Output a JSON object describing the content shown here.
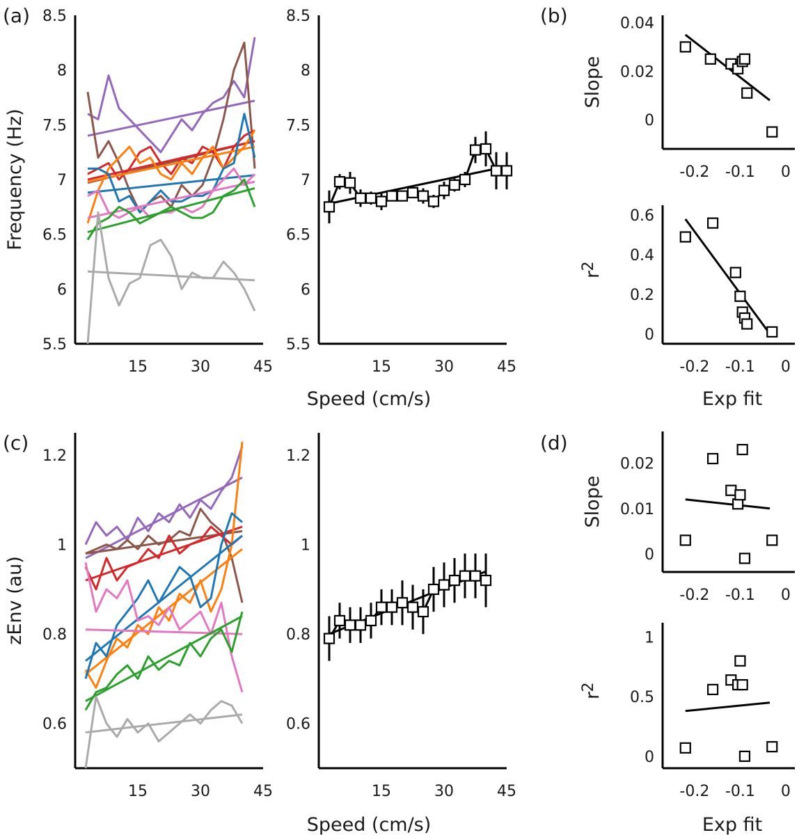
{
  "figure": {
    "panel_labels": [
      "(a)",
      "(b)",
      "(c)",
      "(d)"
    ],
    "speed_label": "Speed (cm/s)",
    "exp_fit_label": "Exp fit"
  },
  "colors": {
    "axis": "#000000",
    "series": [
      "#9467bd",
      "#8c564b",
      "#d62728",
      "#ff7f0e",
      "#1f77b4",
      "#e377c2",
      "#2ca02c",
      "#aaaaaa",
      "#e15a46",
      "#f08c2a"
    ]
  },
  "chart_data": [
    {
      "id": "a-left",
      "type": "line",
      "xlim": [
        0,
        45
      ],
      "xticks": [
        15,
        30,
        45
      ],
      "ylim": [
        5.5,
        8.5
      ],
      "yticks": [
        5.5,
        6,
        6.5,
        7,
        7.5,
        8,
        8.5
      ],
      "ylabel": "Frequency (Hz)",
      "xlabel": "",
      "x": [
        3,
        5.5,
        8,
        10.5,
        13,
        15.5,
        18,
        20.5,
        23,
        25.5,
        28,
        30.5,
        33,
        35.5,
        38,
        40.5,
        43
      ],
      "series": [
        {
          "values": [
            7.6,
            7.55,
            7.95,
            7.65,
            7.55,
            7.45,
            7.35,
            7.25,
            7.4,
            7.55,
            7.45,
            7.6,
            7.7,
            7.75,
            7.9,
            7.75,
            8.3
          ],
          "fit": [
            7.4,
            7.72
          ]
        },
        {
          "values": [
            7.8,
            7.2,
            7.35,
            7.15,
            6.9,
            6.7,
            6.8,
            6.85,
            6.75,
            6.95,
            6.85,
            6.95,
            7.2,
            7.55,
            8.0,
            8.25,
            7.1
          ],
          "fit": [
            6.97,
            7.35
          ]
        },
        {
          "values": [
            7.05,
            7.1,
            7.15,
            7.0,
            7.1,
            7.25,
            7.3,
            7.15,
            7.05,
            7.2,
            7.15,
            7.3,
            7.25,
            7.1,
            7.3,
            7.4,
            7.45
          ],
          "fit": [
            7.0,
            7.35
          ]
        },
        {
          "values": [
            6.6,
            6.9,
            7.1,
            7.2,
            7.3,
            7.15,
            7.2,
            7.05,
            7.0,
            7.15,
            7.05,
            7.2,
            7.3,
            7.1,
            7.2,
            7.3,
            7.45
          ],
          "fit": [
            6.98,
            7.3
          ]
        },
        {
          "values": [
            7.1,
            7.1,
            7.05,
            6.8,
            6.85,
            6.7,
            6.8,
            6.9,
            6.8,
            6.8,
            6.85,
            6.85,
            6.9,
            7.1,
            7.15,
            7.6,
            7.2
          ],
          "fit": [
            6.88,
            7.04
          ]
        },
        {
          "values": [
            6.85,
            6.9,
            6.7,
            6.65,
            6.7,
            6.75,
            6.65,
            6.7,
            6.7,
            6.75,
            6.7,
            6.75,
            6.9,
            7.0,
            7.1,
            6.95,
            7.05
          ],
          "fit": [
            6.65,
            6.98
          ]
        },
        {
          "values": [
            6.45,
            6.6,
            6.65,
            6.75,
            6.7,
            6.6,
            6.65,
            6.7,
            6.75,
            6.7,
            6.65,
            6.65,
            6.7,
            6.85,
            6.9,
            7.0,
            6.75
          ],
          "fit": [
            6.52,
            6.92
          ]
        },
        {
          "values": [
            5.5,
            6.7,
            6.1,
            5.85,
            6.05,
            6.1,
            6.4,
            6.45,
            6.3,
            6.0,
            6.15,
            6.1,
            6.1,
            6.25,
            6.15,
            6.0,
            5.8
          ],
          "fit": [
            6.16,
            6.08
          ]
        }
      ]
    },
    {
      "id": "a-right",
      "type": "line",
      "xlim": [
        0,
        45
      ],
      "xticks": [
        15,
        30,
        45
      ],
      "ylim": [
        5.5,
        8.5
      ],
      "yticks": [
        5.5,
        6,
        6.5,
        7,
        7.5,
        8,
        8.5
      ],
      "ylabel": "",
      "xlabel": "Speed (cm/s)",
      "points": {
        "x": [
          2.5,
          5,
          7.5,
          10,
          12.5,
          15,
          17.5,
          20,
          22.5,
          25,
          27.5,
          30,
          32.5,
          35,
          37.5,
          40,
          42.5,
          45
        ],
        "y": [
          6.75,
          6.98,
          6.97,
          6.83,
          6.83,
          6.8,
          6.85,
          6.85,
          6.88,
          6.85,
          6.8,
          6.9,
          6.95,
          7.0,
          7.27,
          7.28,
          7.08,
          7.08
        ],
        "err": [
          0.15,
          0.07,
          0.1,
          0.08,
          0.06,
          0.08,
          0.05,
          0.05,
          0.05,
          0.07,
          0.06,
          0.08,
          0.06,
          0.07,
          0.12,
          0.16,
          0.17,
          0.17
        ]
      },
      "fit": {
        "x": [
          2.5,
          45
        ],
        "y": [
          6.78,
          7.12
        ]
      }
    },
    {
      "id": "b-top",
      "type": "scatter",
      "xlim": [
        -0.27,
        0.02
      ],
      "xticks": [
        -0.2,
        -0.1,
        0
      ],
      "xticklabels": [
        "-0.2",
        "-0.1",
        "0"
      ],
      "ylim": [
        -0.012,
        0.043
      ],
      "yticks": [
        0,
        0.02,
        0.04
      ],
      "yticklabels": [
        "0",
        "0.02",
        "0.04"
      ],
      "ylabel": "Slope",
      "points": {
        "x": [
          -0.22,
          -0.165,
          -0.12,
          -0.105,
          -0.095,
          -0.09,
          -0.085,
          -0.03
        ],
        "y": [
          0.03,
          0.025,
          0.023,
          0.021,
          0.024,
          0.025,
          0.011,
          -0.005
        ]
      },
      "fit": {
        "x": [
          -0.22,
          -0.035
        ],
        "y": [
          0.035,
          0.008
        ]
      }
    },
    {
      "id": "b-bottom",
      "type": "scatter",
      "xlim": [
        -0.27,
        0.02
      ],
      "xticks": [
        -0.2,
        -0.1,
        0
      ],
      "xticklabels": [
        "-0.2",
        "-0.1",
        "0"
      ],
      "ylim": [
        -0.05,
        0.65
      ],
      "yticks": [
        0,
        0.2,
        0.4,
        0.6
      ],
      "yticklabels": [
        "0",
        "0.2",
        "0.4",
        "0.6"
      ],
      "ylabel": "r",
      "xlabel": "Exp fit",
      "points": {
        "x": [
          -0.22,
          -0.16,
          -0.11,
          -0.1,
          -0.095,
          -0.09,
          -0.085,
          -0.03
        ],
        "y": [
          0.49,
          0.56,
          0.31,
          0.19,
          0.11,
          0.08,
          0.05,
          0.01
        ]
      },
      "fit": {
        "x": [
          -0.22,
          -0.035
        ],
        "y": [
          0.58,
          0.0
        ]
      }
    },
    {
      "id": "c-left",
      "type": "line",
      "xlim": [
        0,
        45
      ],
      "xticks": [
        15,
        30,
        45
      ],
      "ylim": [
        0.5,
        1.25
      ],
      "yticks": [
        0.6,
        0.8,
        1,
        1.2
      ],
      "yticklabels": [
        "0.6",
        "0.8",
        "1",
        "1.2"
      ],
      "ylabel": "zEnv (au)",
      "xlabel": "",
      "x": [
        2.5,
        5,
        7.5,
        10,
        12.5,
        15,
        17.5,
        20,
        22.5,
        25,
        27.5,
        30,
        32.5,
        35,
        37.5,
        40
      ],
      "series": [
        {
          "values": [
            1.0,
            1.05,
            1.02,
            1.04,
            1.01,
            1.06,
            1.03,
            1.07,
            1.05,
            1.09,
            1.06,
            1.1,
            1.08,
            1.12,
            1.15,
            1.22
          ],
          "fit": [
            0.97,
            1.15
          ]
        },
        {
          "values": [
            0.98,
            0.99,
            1.0,
            0.99,
            1.01,
            0.99,
            1.02,
            1.0,
            1.01,
            1.03,
            1.02,
            1.08,
            1.05,
            1.03,
            0.97,
            0.87
          ],
          "fit": [
            0.98,
            1.03
          ]
        },
        {
          "values": [
            0.95,
            0.9,
            0.97,
            0.92,
            0.95,
            0.96,
            0.99,
            0.97,
            1.02,
            0.98,
            1.0,
            1.01,
            1.04,
            1.02,
            1.0,
            1.02
          ],
          "fit": [
            0.92,
            1.04
          ]
        },
        {
          "values": [
            0.72,
            0.68,
            0.74,
            0.79,
            0.77,
            0.82,
            0.8,
            0.86,
            0.83,
            0.89,
            0.87,
            0.92,
            0.85,
            0.9,
            1.0,
            1.23
          ],
          "fit": [
            0.71,
            0.99
          ]
        },
        {
          "values": [
            0.7,
            0.78,
            0.75,
            0.82,
            0.85,
            0.88,
            0.92,
            0.87,
            0.91,
            0.95,
            0.93,
            0.86,
            0.88,
            1.0,
            1.07,
            1.05
          ],
          "fit": [
            0.74,
            1.02
          ]
        },
        {
          "values": [
            0.96,
            0.85,
            0.9,
            0.88,
            0.92,
            0.83,
            0.84,
            0.82,
            0.86,
            0.81,
            0.83,
            0.85,
            0.8,
            0.87,
            0.75,
            0.67
          ],
          "fit": [
            0.81,
            0.8
          ]
        },
        {
          "values": [
            0.63,
            0.67,
            0.68,
            0.71,
            0.73,
            0.7,
            0.75,
            0.72,
            0.74,
            0.73,
            0.78,
            0.75,
            0.79,
            0.81,
            0.76,
            0.85
          ],
          "fit": [
            0.65,
            0.84
          ]
        },
        {
          "values": [
            0.5,
            0.66,
            0.6,
            0.57,
            0.61,
            0.58,
            0.6,
            0.56,
            0.58,
            0.6,
            0.62,
            0.6,
            0.63,
            0.65,
            0.64,
            0.6
          ],
          "fit": [
            0.58,
            0.62
          ]
        }
      ]
    },
    {
      "id": "c-right",
      "type": "line",
      "xlim": [
        0,
        45
      ],
      "xticks": [
        15,
        30,
        45
      ],
      "ylim": [
        0.5,
        1.25
      ],
      "yticks": [
        0.6,
        0.8,
        1,
        1.2
      ],
      "yticklabels": [
        "0.6",
        "0.8",
        "1",
        "1.2"
      ],
      "ylabel": "",
      "xlabel": "Speed (cm/s)",
      "points": {
        "x": [
          2.5,
          5,
          7.5,
          10,
          12.5,
          15,
          17.5,
          20,
          22.5,
          25,
          27.5,
          30,
          32.5,
          35,
          37.5,
          40
        ],
        "y": [
          0.79,
          0.83,
          0.82,
          0.82,
          0.83,
          0.86,
          0.86,
          0.87,
          0.86,
          0.85,
          0.9,
          0.91,
          0.92,
          0.93,
          0.93,
          0.92
        ],
        "err": [
          0.05,
          0.04,
          0.04,
          0.04,
          0.04,
          0.04,
          0.04,
          0.05,
          0.05,
          0.05,
          0.05,
          0.05,
          0.05,
          0.05,
          0.05,
          0.06
        ]
      },
      "fit": {
        "x": [
          2.5,
          40
        ],
        "y": [
          0.8,
          0.94
        ]
      }
    },
    {
      "id": "d-top",
      "type": "scatter",
      "xlim": [
        -0.27,
        0.02
      ],
      "xticks": [
        -0.2,
        -0.1,
        0
      ],
      "xticklabels": [
        "-0.2",
        "-0.1",
        "0"
      ],
      "ylim": [
        -0.004,
        0.027
      ],
      "yticks": [
        0,
        0.01,
        0.02
      ],
      "yticklabels": [
        "0",
        "0.01",
        "0.02"
      ],
      "ylabel": "Slope",
      "points": {
        "x": [
          -0.22,
          -0.16,
          -0.12,
          -0.105,
          -0.1,
          -0.095,
          -0.09,
          -0.03
        ],
        "y": [
          0.003,
          0.021,
          0.014,
          0.011,
          0.013,
          0.023,
          -0.001,
          0.003
        ]
      },
      "fit": {
        "x": [
          -0.22,
          -0.035
        ],
        "y": [
          0.012,
          0.01
        ]
      }
    },
    {
      "id": "d-bottom",
      "type": "scatter",
      "xlim": [
        -0.27,
        0.02
      ],
      "xticks": [
        -0.2,
        -0.1,
        0
      ],
      "xticklabels": [
        "-0.2",
        "-0.1",
        "0"
      ],
      "ylim": [
        -0.1,
        1.12
      ],
      "yticks": [
        0,
        0.5,
        1
      ],
      "yticklabels": [
        "0",
        "0.5",
        "1"
      ],
      "ylabel": "r",
      "xlabel": "Exp fit",
      "points": {
        "x": [
          -0.22,
          -0.16,
          -0.12,
          -0.105,
          -0.1,
          -0.095,
          -0.09,
          -0.03
        ],
        "y": [
          0.07,
          0.56,
          0.64,
          0.6,
          0.8,
          0.6,
          0.0,
          0.08
        ]
      },
      "fit": {
        "x": [
          -0.22,
          -0.035
        ],
        "y": [
          0.38,
          0.45
        ]
      }
    }
  ]
}
